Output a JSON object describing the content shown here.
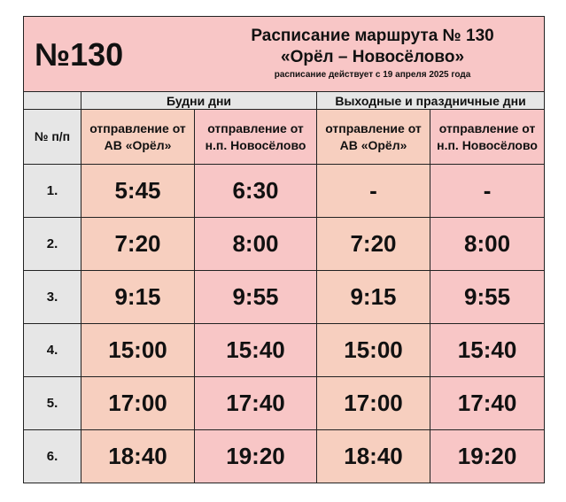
{
  "route_badge": "№130",
  "title": "Расписание маршрута № 130",
  "route_name": "«Орёл – Новосёлово»",
  "effective": "расписание действует с 19 апреля 2025 года",
  "groups": [
    "Будни дни",
    "Выходные и праздничные дни"
  ],
  "num_header": "№ п/п",
  "columns": [
    "отправление от АВ «Орёл»",
    "отправление от н.п. Новосёлово",
    "отправление от АВ «Орёл»",
    "отправление от н.п. Новосёлово"
  ],
  "rows": [
    {
      "n": "1.",
      "t": [
        "5:45",
        "6:30",
        "-",
        "-"
      ]
    },
    {
      "n": "2.",
      "t": [
        "7:20",
        "8:00",
        "7:20",
        "8:00"
      ]
    },
    {
      "n": "3.",
      "t": [
        "9:15",
        "9:55",
        "9:15",
        "9:55"
      ]
    },
    {
      "n": "4.",
      "t": [
        "15:00",
        "15:40",
        "15:00",
        "15:40"
      ]
    },
    {
      "n": "5.",
      "t": [
        "17:00",
        "17:40",
        "17:00",
        "17:40"
      ]
    },
    {
      "n": "6.",
      "t": [
        "18:40",
        "19:20",
        "18:40",
        "19:20"
      ]
    }
  ],
  "colors": {
    "peach": "#f7cfbf",
    "pink": "#f8c6c6",
    "gray": "#e6e6e6"
  }
}
